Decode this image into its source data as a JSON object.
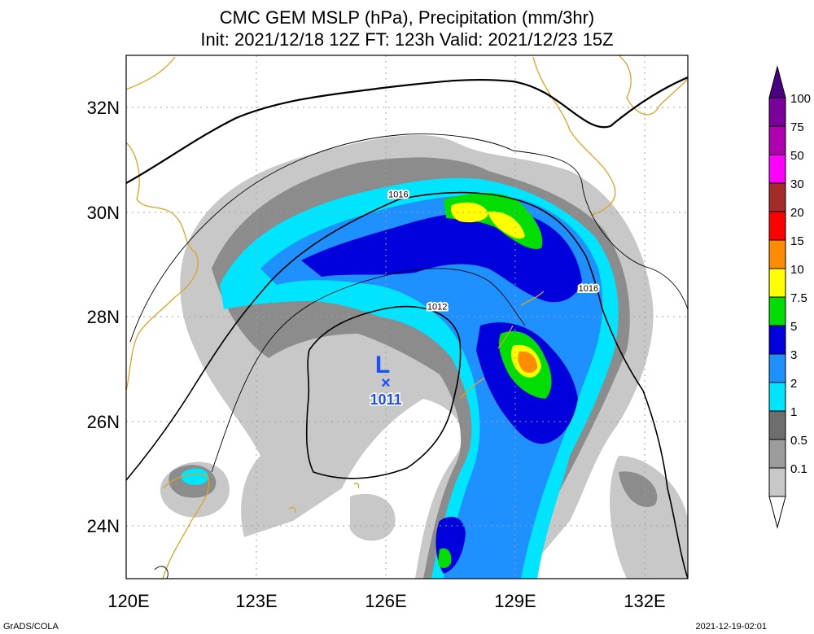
{
  "title": {
    "line1": "CMC GEM MSLP (hPa), Precipitation (mm/3hr)",
    "line2": "Init: 2021/12/18 12Z  FT: 123h  Valid: 2021/12/23 15Z"
  },
  "axes": {
    "x_ticks": [
      "120E",
      "123E",
      "126E",
      "129E",
      "132E"
    ],
    "y_ticks": [
      "32N",
      "30N",
      "28N",
      "26N",
      "24N"
    ],
    "lon_range": [
      120,
      133
    ],
    "lat_range": [
      23,
      33
    ]
  },
  "isobars": [
    {
      "label": "1016",
      "lon": 126.3,
      "lat": 30.35
    },
    {
      "label": "1016",
      "lon": 130.7,
      "lat": 28.55
    },
    {
      "label": "1012",
      "lon": 127.2,
      "lat": 28.2
    }
  ],
  "low_center": {
    "symbol": "L",
    "marker": "×",
    "pressure": "1011",
    "lon": 126.0,
    "lat": 26.75
  },
  "colorbar": {
    "labels": [
      "100",
      "75",
      "50",
      "30",
      "20",
      "15",
      "10",
      "7.5",
      "5",
      "3",
      "2",
      "1",
      "0.5",
      "0.1"
    ],
    "colors": [
      "#7a009a",
      "#b000b0",
      "#ff00ff",
      "#a52a2a",
      "#ff0000",
      "#ff8c00",
      "#ffff00",
      "#00dd00",
      "#0000dd",
      "#1e90ff",
      "#00e5ff",
      "#6e6e6e",
      "#9c9c9c",
      "#c8c8c8"
    ]
  },
  "footer": {
    "left": "GrADS/COLA",
    "right": "2021-12-19-02:01"
  }
}
